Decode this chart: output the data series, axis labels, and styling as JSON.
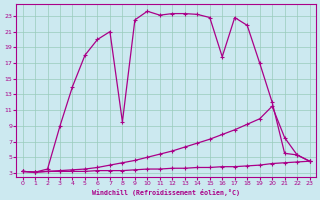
{
  "xlabel": "Windchill (Refroidissement éolien,°C)",
  "x_ticks": [
    0,
    1,
    2,
    3,
    4,
    5,
    6,
    7,
    8,
    9,
    10,
    11,
    12,
    13,
    14,
    15,
    16,
    17,
    18,
    19,
    20,
    21,
    22,
    23
  ],
  "y_ticks": [
    3,
    5,
    7,
    9,
    11,
    13,
    15,
    17,
    19,
    21,
    23
  ],
  "xlim": [
    -0.5,
    23.5
  ],
  "ylim": [
    2.5,
    24.5
  ],
  "bg_color": "#cce9f0",
  "line_color": "#aa0088",
  "grid_color": "#99ccbb",
  "curve_x": [
    0,
    1,
    2,
    3,
    4,
    5,
    6,
    7,
    8,
    9,
    10,
    11,
    12,
    13,
    14,
    15,
    16,
    17,
    18,
    19,
    20,
    21,
    22,
    23
  ],
  "curve_y": [
    3.2,
    3.1,
    3.5,
    9.0,
    14.0,
    18.0,
    20.0,
    21.0,
    9.5,
    22.5,
    23.6,
    23.1,
    23.3,
    23.3,
    23.2,
    22.8,
    17.8,
    22.8,
    21.8,
    17.0,
    12.0,
    5.5,
    5.3,
    4.5
  ],
  "diag_x": [
    0,
    1,
    2,
    3,
    4,
    5,
    6,
    7,
    8,
    9,
    10,
    11,
    12,
    13,
    14,
    15,
    16,
    17,
    18,
    19,
    20,
    21,
    22,
    23
  ],
  "diag_y": [
    3.2,
    3.1,
    3.2,
    3.3,
    3.4,
    3.5,
    3.7,
    4.0,
    4.3,
    4.6,
    5.0,
    5.4,
    5.8,
    6.3,
    6.8,
    7.3,
    7.9,
    8.5,
    9.2,
    9.9,
    11.5,
    7.5,
    5.3,
    4.5
  ],
  "flat_x": [
    0,
    1,
    2,
    3,
    4,
    5,
    6,
    7,
    8,
    9,
    10,
    11,
    12,
    13,
    14,
    15,
    16,
    17,
    18,
    19,
    20,
    21,
    22,
    23
  ],
  "flat_y": [
    3.2,
    3.1,
    3.2,
    3.2,
    3.2,
    3.2,
    3.3,
    3.3,
    3.3,
    3.4,
    3.5,
    3.5,
    3.6,
    3.6,
    3.7,
    3.7,
    3.8,
    3.8,
    3.9,
    4.0,
    4.2,
    4.3,
    4.4,
    4.5
  ]
}
